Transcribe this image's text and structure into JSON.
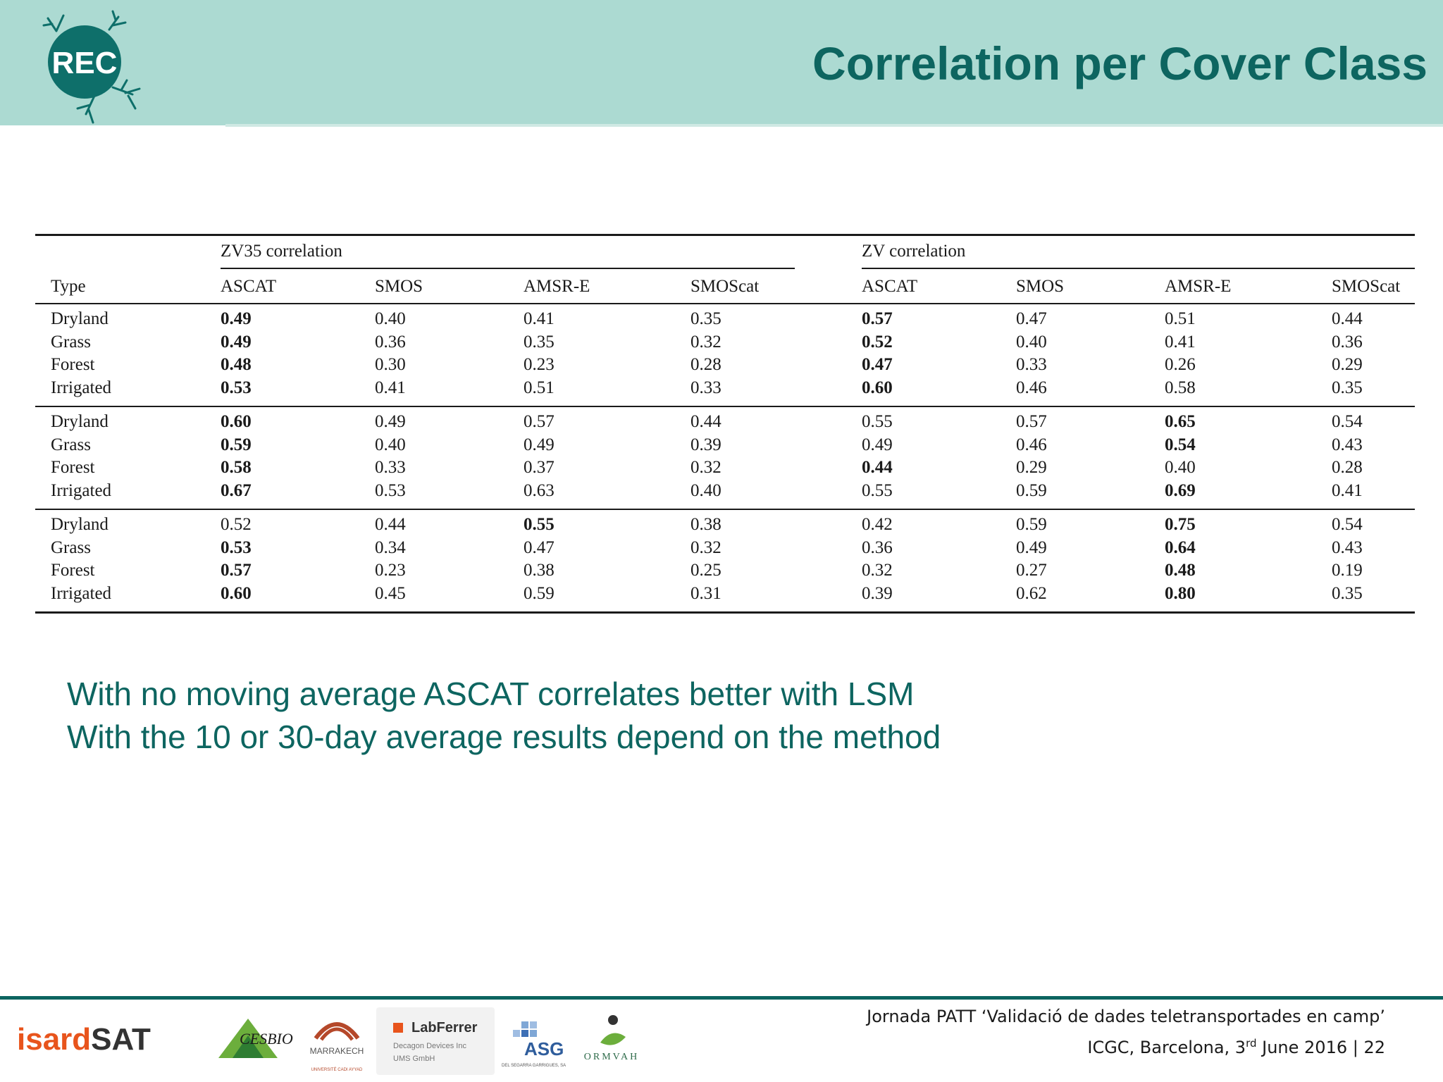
{
  "header": {
    "logo_text": "REC",
    "title": "Correlation per Cover Class"
  },
  "table": {
    "group_headers": [
      "ZV35 correlation",
      "ZV correlation"
    ],
    "columns": [
      "Type",
      "ASCAT",
      "SMOS",
      "AMSR-E",
      "SMOScat",
      "ASCAT",
      "SMOS",
      "AMSR-E",
      "SMOScat"
    ],
    "blocks": [
      [
        {
          "type": "Dryland",
          "values": [
            "0.49",
            "0.40",
            "0.41",
            "0.35",
            "0.57",
            "0.47",
            "0.51",
            "0.44"
          ],
          "bold": [
            0,
            4
          ]
        },
        {
          "type": "Grass",
          "values": [
            "0.49",
            "0.36",
            "0.35",
            "0.32",
            "0.52",
            "0.40",
            "0.41",
            "0.36"
          ],
          "bold": [
            0,
            4
          ]
        },
        {
          "type": "Forest",
          "values": [
            "0.48",
            "0.30",
            "0.23",
            "0.28",
            "0.47",
            "0.33",
            "0.26",
            "0.29"
          ],
          "bold": [
            0,
            4
          ]
        },
        {
          "type": "Irrigated",
          "values": [
            "0.53",
            "0.41",
            "0.51",
            "0.33",
            "0.60",
            "0.46",
            "0.58",
            "0.35"
          ],
          "bold": [
            0,
            4
          ]
        }
      ],
      [
        {
          "type": "Dryland",
          "values": [
            "0.60",
            "0.49",
            "0.57",
            "0.44",
            "0.55",
            "0.57",
            "0.65",
            "0.54"
          ],
          "bold": [
            0,
            6
          ]
        },
        {
          "type": "Grass",
          "values": [
            "0.59",
            "0.40",
            "0.49",
            "0.39",
            "0.49",
            "0.46",
            "0.54",
            "0.43"
          ],
          "bold": [
            0,
            6
          ]
        },
        {
          "type": "Forest",
          "values": [
            "0.58",
            "0.33",
            "0.37",
            "0.32",
            "0.44",
            "0.29",
            "0.40",
            "0.28"
          ],
          "bold": [
            0,
            4
          ]
        },
        {
          "type": "Irrigated",
          "values": [
            "0.67",
            "0.53",
            "0.63",
            "0.40",
            "0.55",
            "0.59",
            "0.69",
            "0.41"
          ],
          "bold": [
            0,
            6
          ]
        }
      ],
      [
        {
          "type": "Dryland",
          "values": [
            "0.52",
            "0.44",
            "0.55",
            "0.38",
            "0.42",
            "0.59",
            "0.75",
            "0.54"
          ],
          "bold": [
            2,
            6
          ]
        },
        {
          "type": "Grass",
          "values": [
            "0.53",
            "0.34",
            "0.47",
            "0.32",
            "0.36",
            "0.49",
            "0.64",
            "0.43"
          ],
          "bold": [
            0,
            6
          ]
        },
        {
          "type": "Forest",
          "values": [
            "0.57",
            "0.23",
            "0.38",
            "0.25",
            "0.32",
            "0.27",
            "0.48",
            "0.19"
          ],
          "bold": [
            0,
            6
          ]
        },
        {
          "type": "Irrigated",
          "values": [
            "0.60",
            "0.45",
            "0.59",
            "0.31",
            "0.39",
            "0.62",
            "0.80",
            "0.35"
          ],
          "bold": [
            0,
            6
          ]
        }
      ]
    ]
  },
  "bullets": [
    "With no moving average ASCAT correlates better with LSM",
    "With the 10 or 30-day average results depend on the method"
  ],
  "footer": {
    "logos": {
      "isardsat": "isardSAT",
      "cesbio": "CESBIO",
      "marrakech": "MARRAKECH",
      "marrakech_sub": "UNIVERSITÉ CADI AYYAD",
      "labferrer": "LabFerrer",
      "labferrer_sub1": "Decagon Devices Inc",
      "labferrer_sub2": "UMS GmbH",
      "asg": "ASG",
      "asg_sub": "DEL SEGARRA GARRIGUES, SA",
      "ormvah": "ORMVAH"
    },
    "line1": "Jornada PATT ‘Validació de dades teletransportades en camp’",
    "line2_prefix": "ICGC, Barcelona, 3",
    "line2_sup": "rd",
    "line2_suffix": " June 2016 | 22"
  },
  "colors": {
    "header_bg": "#acdad2",
    "accent_teal": "#0d6560",
    "rec_circle": "#0e6f6a"
  }
}
